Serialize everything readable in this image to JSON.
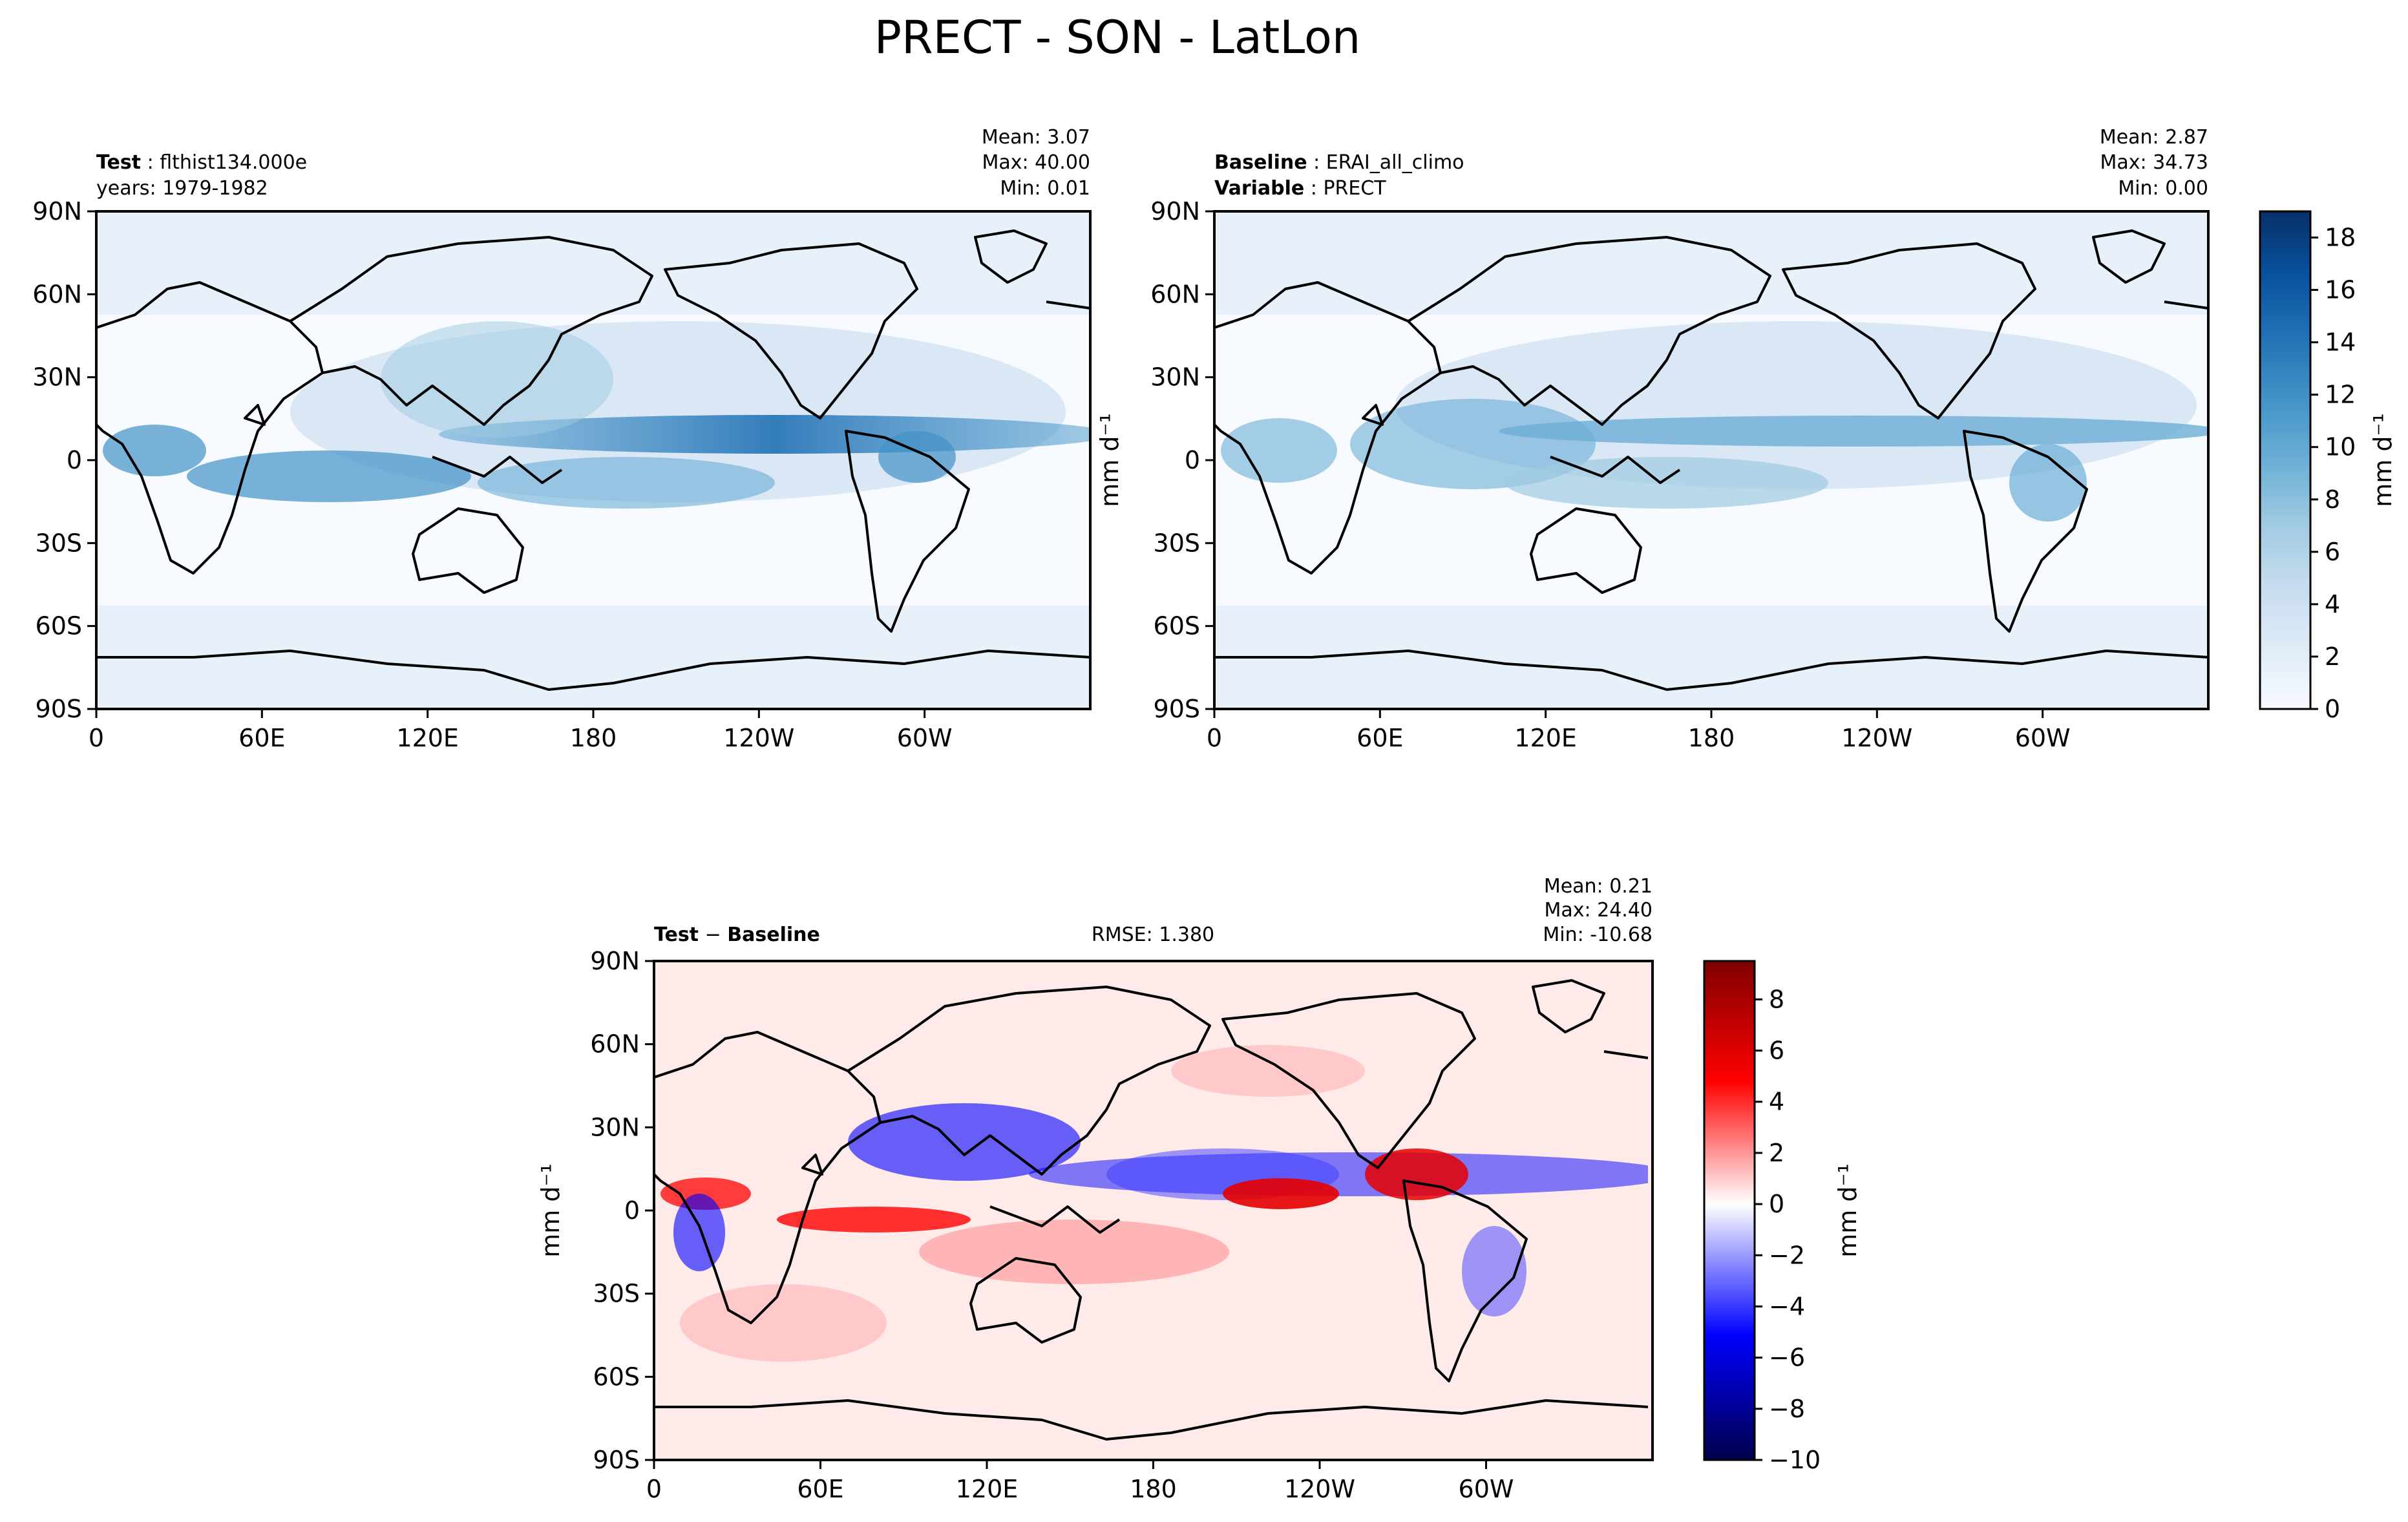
{
  "figure": {
    "title": "PRECT - SON - LatLon"
  },
  "panels": {
    "test": {
      "name_key": "Test",
      "name_value": "flthist134.000e",
      "line2_label": "years: 1979-1982",
      "stats": {
        "mean": "Mean:  3.07",
        "max": "Max: 40.00",
        "min": "Min:  0.01"
      }
    },
    "baseline": {
      "name_key": "Baseline",
      "name_value": "ERAI_all_climo",
      "var_key": "Variable",
      "var_value": "PRECT",
      "stats": {
        "mean": "Mean:  2.87",
        "max": "Max: 34.73",
        "min": "Min:  0.00"
      }
    },
    "diff": {
      "name_key": "Test",
      "sep": " − ",
      "name_key2": "Baseline",
      "rmse": "RMSE: 1.380",
      "stats": {
        "mean": "Mean:  0.21",
        "max": "Max: 24.40",
        "min": "Min: -10.68"
      }
    }
  },
  "colorbars": {
    "precip": {
      "unit_label": "mm d⁻¹",
      "ticks": [
        "0",
        "2",
        "4",
        "6",
        "8",
        "10",
        "12",
        "14",
        "16",
        "18"
      ],
      "max": 19,
      "colors": [
        "#f7fbff",
        "#deebf7",
        "#c6dbef",
        "#9ecae1",
        "#6baed6",
        "#4292c6",
        "#2171b5",
        "#08519c",
        "#08306b"
      ]
    },
    "diff": {
      "unit_label": "mm d⁻¹",
      "ticks": [
        "−10",
        "−8",
        "−6",
        "−4",
        "−2",
        "0",
        "2",
        "4",
        "6",
        "8"
      ],
      "min": -10,
      "max": 9.5,
      "colors": [
        "#00004c",
        "#0000ff",
        "#ffffff",
        "#ff0000",
        "#800000"
      ]
    }
  },
  "chart_data": [
    {
      "type": "heatmap",
      "title": "Test : flthist134.000e",
      "xlabel": "",
      "ylabel": "",
      "x_ticks": [
        "0",
        "60E",
        "120E",
        "180",
        "120W",
        "60W"
      ],
      "y_ticks": [
        "90N",
        "60N",
        "30N",
        "0",
        "30S",
        "60S",
        "90S"
      ],
      "xlim": [
        0,
        360
      ],
      "ylim": [
        -90,
        90
      ],
      "stats": {
        "mean": 3.07,
        "max": 40.0,
        "min": 0.01
      },
      "colorbar": {
        "label": "mm d⁻¹",
        "range": [
          0,
          19
        ]
      }
    },
    {
      "type": "heatmap",
      "title": "Baseline : ERAI_all_climo",
      "xlabel": "",
      "ylabel": "",
      "x_ticks": [
        "0",
        "60E",
        "120E",
        "180",
        "120W",
        "60W"
      ],
      "y_ticks": [
        "90N",
        "60N",
        "30N",
        "0",
        "30S",
        "60S",
        "90S"
      ],
      "xlim": [
        0,
        360
      ],
      "ylim": [
        -90,
        90
      ],
      "stats": {
        "mean": 2.87,
        "max": 34.73,
        "min": 0.0
      },
      "colorbar": {
        "label": "mm d⁻¹",
        "range": [
          0,
          19
        ]
      }
    },
    {
      "type": "heatmap",
      "title": "Test − Baseline",
      "xlabel": "",
      "ylabel": "mm d⁻¹",
      "x_ticks": [
        "0",
        "60E",
        "120E",
        "180",
        "120W",
        "60W"
      ],
      "y_ticks": [
        "90N",
        "60N",
        "30N",
        "0",
        "30S",
        "60S",
        "90S"
      ],
      "xlim": [
        0,
        360
      ],
      "ylim": [
        -90,
        90
      ],
      "stats": {
        "mean": 0.21,
        "max": 24.4,
        "min": -10.68,
        "rmse": 1.38
      },
      "colorbar": {
        "label": "mm d⁻¹",
        "range": [
          -10,
          9.5
        ]
      }
    }
  ]
}
